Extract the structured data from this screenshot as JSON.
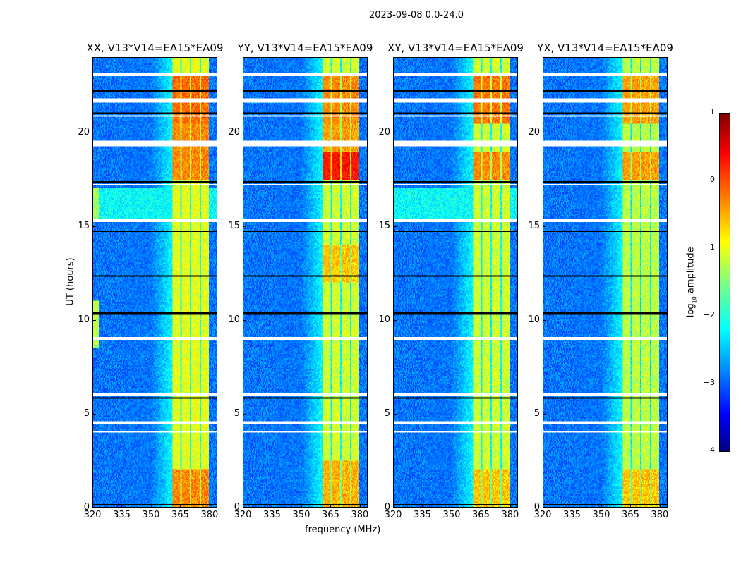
{
  "suptitle": "2023-09-08 0.0-24.0",
  "xlabel": "frequency (MHz)",
  "ylabel": "UT (hours)",
  "colorbar": {
    "label_prefix": "log",
    "label_sub": "10",
    "label_suffix": " amplitude",
    "range": [
      -4,
      1
    ],
    "ticks": [
      "1",
      "0",
      "−1",
      "−2",
      "−3",
      "−4"
    ],
    "tick_values": [
      1,
      0,
      -1,
      -2,
      -3,
      -4
    ],
    "colormap": "jet"
  },
  "chart_data": [
    {
      "type": "heatmap",
      "title": "XX, V13*V14=EA15*EA09",
      "xlabel": "frequency (MHz)",
      "ylabel": "UT (hours)",
      "xlim": [
        320,
        384
      ],
      "ylim": [
        0,
        24
      ],
      "xticks": [
        "320",
        "335",
        "350",
        "365",
        "380"
      ],
      "xtick_values": [
        320,
        335,
        350,
        365,
        380
      ],
      "yticks": [
        "0",
        "5",
        "10",
        "15",
        "20"
      ],
      "ytick_values": [
        0,
        5,
        10,
        15,
        20
      ],
      "background_level": -2.8,
      "features": [
        {
          "f": [
            361,
            380
          ],
          "t": [
            0,
            24
          ],
          "level": -1.0
        },
        {
          "f": [
            361,
            380
          ],
          "t": [
            0,
            2
          ],
          "level": -0.3
        },
        {
          "f": [
            361,
            380
          ],
          "t": [
            17.5,
            20.5
          ],
          "level": -0.3
        },
        {
          "f": [
            361,
            380
          ],
          "t": [
            20.5,
            23
          ],
          "level": -0.15
        },
        {
          "f": [
            320,
            384
          ],
          "t": [
            15.2,
            17
          ],
          "level": -2.1
        },
        {
          "f": [
            320,
            323
          ],
          "t": [
            8.5,
            11
          ],
          "level": -1.2
        },
        {
          "f": [
            320,
            323
          ],
          "t": [
            15.2,
            17
          ],
          "level": -1.3
        }
      ]
    },
    {
      "type": "heatmap",
      "title": "YY, V13*V14=EA15*EA09",
      "xlabel": "frequency (MHz)",
      "ylabel": "UT (hours)",
      "xlim": [
        320,
        384
      ],
      "ylim": [
        0,
        24
      ],
      "xticks": [
        "320",
        "335",
        "350",
        "365",
        "380"
      ],
      "xtick_values": [
        320,
        335,
        350,
        365,
        380
      ],
      "yticks": [
        "0",
        "5",
        "10",
        "15",
        "20"
      ],
      "ytick_values": [
        0,
        5,
        10,
        15,
        20
      ],
      "background_level": -2.8,
      "features": [
        {
          "f": [
            361,
            380
          ],
          "t": [
            0,
            24
          ],
          "level": -1.1
        },
        {
          "f": [
            361,
            380
          ],
          "t": [
            0,
            2.5
          ],
          "level": -0.5
        },
        {
          "f": [
            361,
            380
          ],
          "t": [
            12,
            14
          ],
          "level": -0.6
        },
        {
          "f": [
            361,
            380
          ],
          "t": [
            17.5,
            19
          ],
          "level": 0.3
        },
        {
          "f": [
            361,
            380
          ],
          "t": [
            19,
            20.5
          ],
          "level": -0.4
        },
        {
          "f": [
            361,
            380
          ],
          "t": [
            20.5,
            23
          ],
          "level": -0.3
        }
      ]
    },
    {
      "type": "heatmap",
      "title": "XY, V13*V14=EA15*EA09",
      "xlabel": "frequency (MHz)",
      "ylabel": "UT (hours)",
      "xlim": [
        320,
        384
      ],
      "ylim": [
        0,
        24
      ],
      "xticks": [
        "320",
        "335",
        "350",
        "365",
        "380"
      ],
      "xtick_values": [
        320,
        335,
        350,
        365,
        380
      ],
      "yticks": [
        "0",
        "5",
        "10",
        "15",
        "20"
      ],
      "ytick_values": [
        0,
        5,
        10,
        15,
        20
      ],
      "background_level": -2.8,
      "features": [
        {
          "f": [
            361,
            380
          ],
          "t": [
            0,
            24
          ],
          "level": -1.1
        },
        {
          "f": [
            361,
            380
          ],
          "t": [
            0,
            2
          ],
          "level": -0.6
        },
        {
          "f": [
            361,
            380
          ],
          "t": [
            17.5,
            19
          ],
          "level": -0.3
        },
        {
          "f": [
            361,
            380
          ],
          "t": [
            20.5,
            23
          ],
          "level": -0.2
        },
        {
          "f": [
            320,
            384
          ],
          "t": [
            15.2,
            17
          ],
          "level": -2.1
        }
      ]
    },
    {
      "type": "heatmap",
      "title": "YX, V13*V14=EA15*EA09",
      "xlabel": "frequency (MHz)",
      "ylabel": "UT (hours)",
      "xlim": [
        320,
        384
      ],
      "ylim": [
        0,
        24
      ],
      "xticks": [
        "320",
        "335",
        "350",
        "365",
        "380"
      ],
      "xtick_values": [
        320,
        335,
        350,
        365,
        380
      ],
      "yticks": [
        "0",
        "5",
        "10",
        "15",
        "20"
      ],
      "ytick_values": [
        0,
        5,
        10,
        15,
        20
      ],
      "background_level": -2.8,
      "features": [
        {
          "f": [
            361,
            380
          ],
          "t": [
            0,
            24
          ],
          "level": -1.2
        },
        {
          "f": [
            361,
            380
          ],
          "t": [
            0,
            2
          ],
          "level": -0.6
        },
        {
          "f": [
            361,
            380
          ],
          "t": [
            17.5,
            19
          ],
          "level": -0.4
        },
        {
          "f": [
            361,
            380
          ],
          "t": [
            20.5,
            23
          ],
          "level": -0.4
        }
      ]
    }
  ],
  "flagged_times": [
    {
      "t": [
        23.05,
        23.2
      ],
      "kind": "white"
    },
    {
      "t": [
        21.6,
        21.8
      ],
      "kind": "white"
    },
    {
      "t": [
        20.85,
        20.95
      ],
      "kind": "white"
    },
    {
      "t": [
        19.3,
        19.55
      ],
      "kind": "white"
    },
    {
      "t": [
        17.15,
        17.25
      ],
      "kind": "white"
    },
    {
      "t": [
        15.2,
        15.35
      ],
      "kind": "white"
    },
    {
      "t": [
        8.95,
        9.05
      ],
      "kind": "white"
    },
    {
      "t": [
        5.95,
        6.1
      ],
      "kind": "white"
    },
    {
      "t": [
        4.45,
        4.55
      ],
      "kind": "white"
    },
    {
      "t": [
        3.95,
        4.05
      ],
      "kind": "white"
    },
    {
      "t": [
        22.2,
        22.3
      ],
      "kind": "black"
    },
    {
      "t": [
        21.0,
        21.1
      ],
      "kind": "black"
    },
    {
      "t": [
        17.35,
        17.4
      ],
      "kind": "black"
    },
    {
      "t": [
        14.7,
        14.8
      ],
      "kind": "black"
    },
    {
      "t": [
        12.3,
        12.4
      ],
      "kind": "black"
    },
    {
      "t": [
        10.3,
        10.4
      ],
      "kind": "black"
    },
    {
      "t": [
        5.75,
        5.85
      ],
      "kind": "black"
    },
    {
      "t": [
        0.1,
        0.15
      ],
      "kind": "black"
    }
  ],
  "channel_gaps_mhz": [
    365.5,
    370.5,
    375.6
  ]
}
